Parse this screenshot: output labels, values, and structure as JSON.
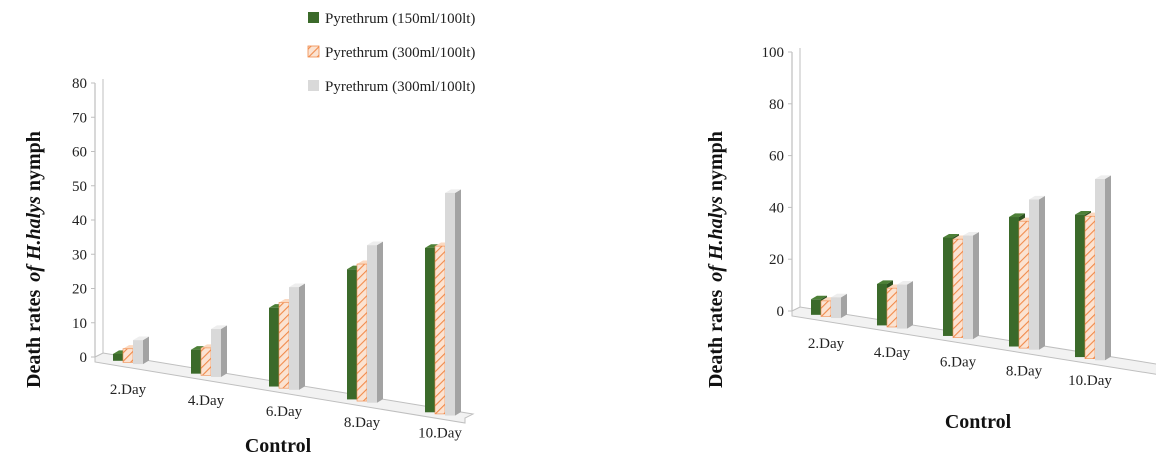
{
  "colors": {
    "series": [
      "#3b6a2a",
      "#f4b184",
      "#d9d9d9"
    ],
    "axis": "#bfbfbf"
  },
  "chart_data": [
    {
      "type": "bar",
      "categories": [
        "2.Day",
        "4.Day",
        "6.Day",
        "8.Day",
        "10.Day"
      ],
      "series": [
        {
          "name": "Pyrethrum (150ml/100lt)",
          "values": [
            2,
            7,
            23,
            38,
            48
          ]
        },
        {
          "name": "Pyrethrum (300ml/100lt)",
          "values": [
            4,
            8,
            25,
            40,
            49
          ]
        },
        {
          "name": "Pyrethrum (300ml/100lt)",
          "values": [
            7,
            14,
            30,
            46,
            65
          ]
        }
      ],
      "ylim": [
        0,
        80
      ],
      "yticks": [
        "0",
        "10",
        "20",
        "30",
        "40",
        "50",
        "60",
        "70",
        "80"
      ],
      "xlabel": "Control",
      "ylabel": {
        "main": "Death rates",
        "italic_prefix": "of ",
        "species": "H.halys",
        "suffix": " nymph"
      },
      "legend": "top"
    },
    {
      "type": "bar",
      "categories": [
        "2.Day",
        "4.Day",
        "6.Day",
        "8.Day",
        "10.Day"
      ],
      "series": [
        {
          "values": [
            6,
            16,
            38,
            50,
            55
          ]
        },
        {
          "values": [
            6,
            15,
            38,
            49,
            55
          ]
        },
        {
          "values": [
            8,
            17,
            40,
            58,
            70
          ]
        }
      ],
      "ylim": [
        0,
        100
      ],
      "yticks": [
        "0",
        "20",
        "40",
        "60",
        "80",
        "100"
      ],
      "xlabel": "Control",
      "ylabel": {
        "main": "Death rates",
        "italic_prefix": "of ",
        "species": "H.halys",
        "suffix": " nymph"
      }
    }
  ]
}
